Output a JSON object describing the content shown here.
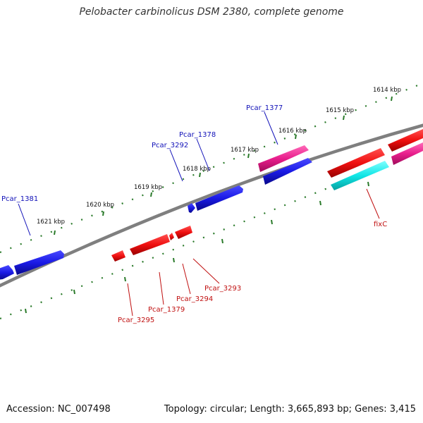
{
  "title": "Pelobacter carbinolicus DSM 2380, complete genome",
  "footer": {
    "accession": "Accession: NC_007498",
    "summary": "Topology: circular; Length: 3,665,893 bp; Genes: 3,415"
  },
  "colors": {
    "backbone": "#7f7f7f",
    "tick": "#2a7a2a",
    "forward_label": "#1010b8",
    "reverse_label": "#c01010",
    "blue": "#1a1ae6",
    "red": "#f01010",
    "pink": "#e81e8c",
    "cyan": "#10e6e6"
  },
  "scale": {
    "ticks": [
      {
        "kbp": 1621,
        "label": "1621 kbp"
      },
      {
        "kbp": 1620,
        "label": "1620 kbp"
      },
      {
        "kbp": 1619,
        "label": "1619 kbp"
      },
      {
        "kbp": 1618,
        "label": "1618 kbp"
      },
      {
        "kbp": 1617,
        "label": "1617 kbp"
      },
      {
        "kbp": 1616,
        "label": "1616 kbp"
      },
      {
        "kbp": 1615,
        "label": "1615 kbp"
      },
      {
        "kbp": 1614,
        "label": "1614 kbp"
      }
    ]
  },
  "genes": {
    "forward": [
      {
        "name": "Pcar_1381"
      },
      {
        "name": "Pcar_3292"
      },
      {
        "name": "Pcar_1378"
      },
      {
        "name": "Pcar_1377"
      }
    ],
    "reverse": [
      {
        "name": "Pcar_3295"
      },
      {
        "name": "Pcar_1379"
      },
      {
        "name": "Pcar_3294"
      },
      {
        "name": "Pcar_3293"
      },
      {
        "name": "fixC"
      }
    ]
  }
}
